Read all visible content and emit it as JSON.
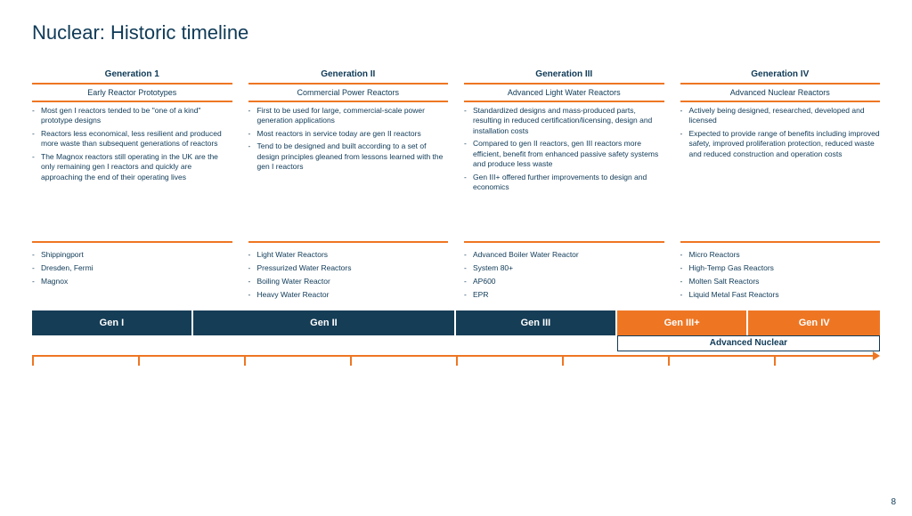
{
  "colors": {
    "title": "#0f3a57",
    "dark": "#0f3a57",
    "orange": "#ee7623",
    "barDark": "#153d56",
    "barOrange": "#ee7623",
    "background": "#ffffff"
  },
  "title": "Nuclear: Historic timeline",
  "page_number": "8",
  "columns": [
    {
      "heading": "Generation 1",
      "subheading": "Early Reactor Prototypes",
      "bullets": [
        "Most gen I reactors tended to be \"one of a kind\" prototype designs",
        "Reactors less economical, less resilient and produced more waste than subsequent generations of reactors",
        "The Magnox reactors still operating in the UK are the only remaining gen I reactors and quickly are approaching the end of their operating lives"
      ],
      "examples": [
        "Shippingport",
        "Dresden, Fermi",
        "Magnox"
      ]
    },
    {
      "heading": "Generation II",
      "subheading": "Commercial Power Reactors",
      "bullets": [
        "First to be used for large, commercial-scale power generation applications",
        "Most reactors in service today are gen II reactors",
        "Tend to be designed and built according to a set of design principles gleaned from lessons learned with the gen I reactors"
      ],
      "examples": [
        "Light Water Reactors",
        "Pressurized Water Reactors",
        "Boiling Water Reactor",
        "Heavy Water Reactor"
      ]
    },
    {
      "heading": "Generation III",
      "subheading": "Advanced Light Water Reactors",
      "bullets": [
        "Standardized designs and mass-produced parts, resulting in reduced certification/licensing, design and installation costs",
        "Compared to gen II reactors, gen III reactors more efficient, benefit from enhanced passive safety systems and produce less waste",
        "Gen III+ offered further improvements to design and economics"
      ],
      "examples": [
        "Advanced Boiler Water Reactor",
        "System 80+",
        "AP600",
        "EPR"
      ]
    },
    {
      "heading": "Generation IV",
      "subheading": "Advanced Nuclear Reactors",
      "bullets": [
        "Actively being designed, researched, developed and licensed",
        "Expected to provide range of benefits including improved safety, improved proliferation protection, reduced waste and reduced construction and operation costs"
      ],
      "examples": [
        "Micro Reactors",
        "High-Temp Gas Reactors",
        "Molten Salt Reactors",
        "Liquid Metal Fast Reactors"
      ]
    }
  ],
  "timeline": {
    "bars": [
      {
        "label": "Gen I",
        "width_pct": 19,
        "fill": "#153d56"
      },
      {
        "label": "Gen II",
        "width_pct": 31,
        "fill": "#153d56"
      },
      {
        "label": "Gen III",
        "width_pct": 19,
        "fill": "#153d56"
      },
      {
        "label": "Gen III+",
        "width_pct": 15.5,
        "fill": "#ee7623"
      },
      {
        "label": "Gen IV",
        "width_pct": 15.5,
        "fill": "#ee7623"
      }
    ],
    "advanced_label": "Advanced Nuclear",
    "advanced_offset_pct": 69,
    "advanced_width_pct": 31,
    "ticks_pct": [
      0,
      12.5,
      25,
      37.5,
      50,
      62.5,
      75,
      87.5
    ]
  }
}
